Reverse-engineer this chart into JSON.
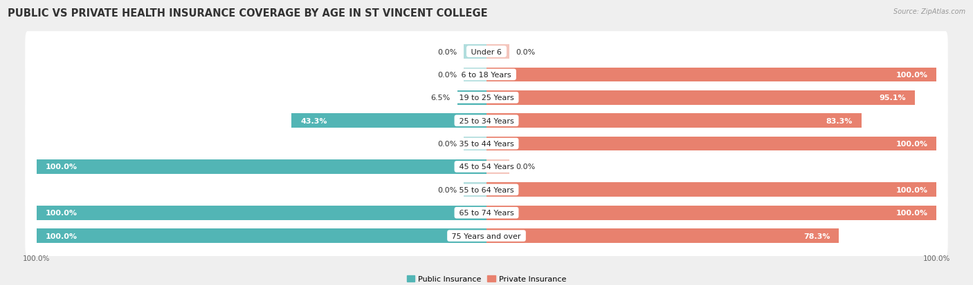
{
  "title": "PUBLIC VS PRIVATE HEALTH INSURANCE COVERAGE BY AGE IN ST VINCENT COLLEGE",
  "source": "Source: ZipAtlas.com",
  "categories": [
    "Under 6",
    "6 to 18 Years",
    "19 to 25 Years",
    "25 to 34 Years",
    "35 to 44 Years",
    "45 to 54 Years",
    "55 to 64 Years",
    "65 to 74 Years",
    "75 Years and over"
  ],
  "public": [
    0.0,
    0.0,
    6.5,
    43.3,
    0.0,
    100.0,
    0.0,
    100.0,
    100.0
  ],
  "private": [
    0.0,
    100.0,
    95.1,
    83.3,
    100.0,
    0.0,
    100.0,
    100.0,
    78.3
  ],
  "public_color": "#52b5b5",
  "private_color": "#e8816e",
  "background_color": "#efefef",
  "bar_background": "#ffffff",
  "bar_height": 0.62,
  "title_fontsize": 10.5,
  "label_fontsize": 8.0,
  "axis_label_fontsize": 7.5,
  "legend_fontsize": 8.0,
  "stub_size": 5.0
}
